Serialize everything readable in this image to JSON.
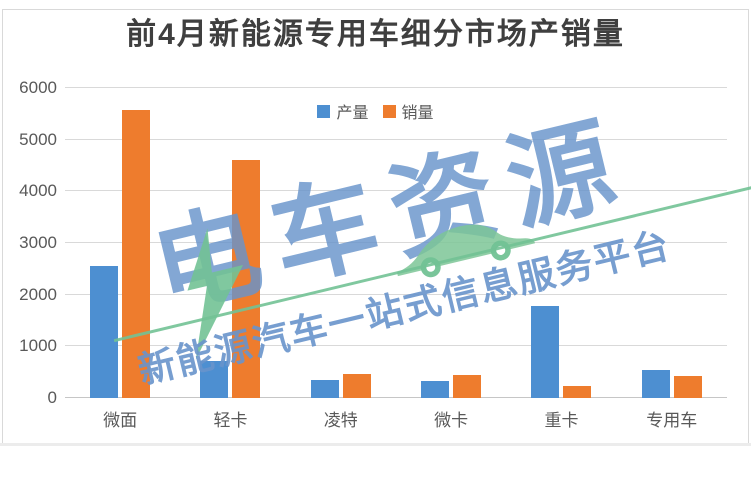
{
  "title": "前4月新能源专用车细分市场产销量",
  "watermark": {
    "brand": "电车资源",
    "tagline": "新能源汽车一站式信息服务平台",
    "brand_color": "#6894CB",
    "accent_green": "#72C295"
  },
  "colors": {
    "production_blue": "#4D8FD1",
    "sales_orange": "#EE7C2D",
    "gridline": "#D9D9D9",
    "axis_text": "#595959",
    "title_text": "#3F3F3F",
    "background": "#FFFFFF",
    "frame_border": "#D9D9D9"
  },
  "chart_data": {
    "type": "bar",
    "title": "前4月新能源专用车细分市场产销量",
    "categories": [
      "微面",
      "轻卡",
      "凌特",
      "微卡",
      "重卡",
      "专用车"
    ],
    "series": [
      {
        "name": "产量",
        "color": "#4D8FD1",
        "values": [
          2550,
          710,
          340,
          320,
          1780,
          540
        ]
      },
      {
        "name": "销量",
        "color": "#EE7C2D",
        "values": [
          5580,
          4610,
          470,
          450,
          240,
          420
        ]
      }
    ],
    "xlabel": "",
    "ylabel": "",
    "ylim": [
      0,
      6000
    ],
    "yticks": [
      0,
      1000,
      2000,
      3000,
      4000,
      5000,
      6000
    ],
    "grid": true,
    "legend_position": "top-center"
  }
}
